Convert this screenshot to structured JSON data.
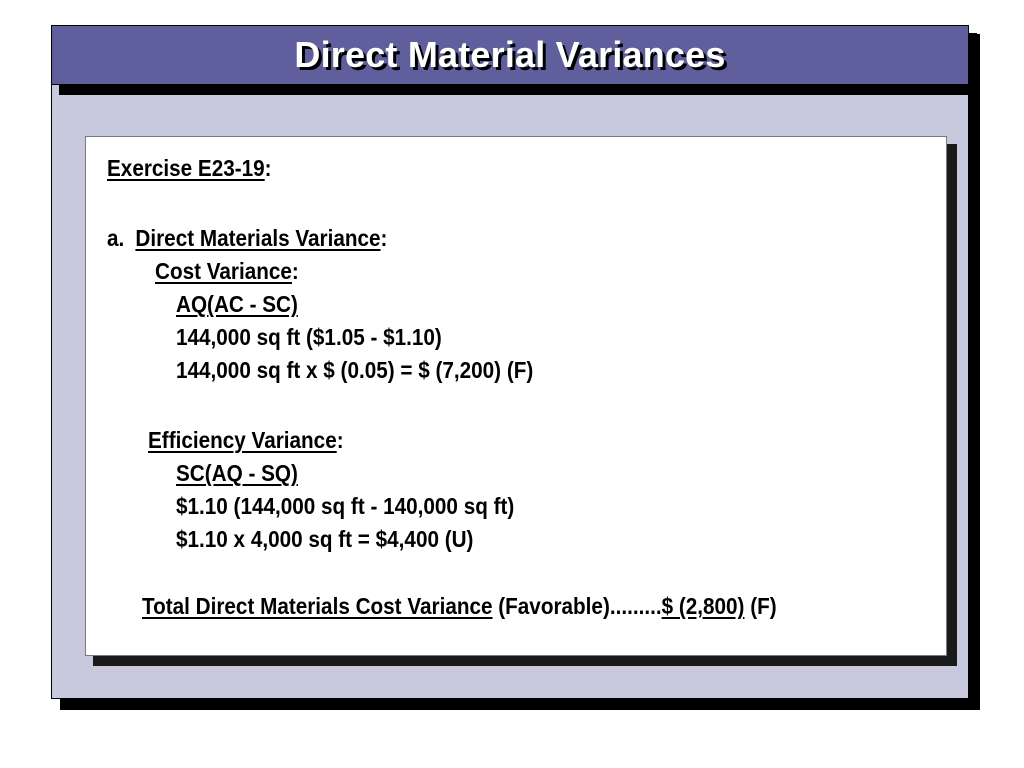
{
  "slide": {
    "title": "Direct Material Variances",
    "exercise_heading": "Exercise E23-19",
    "colon": ":",
    "part_a": {
      "marker": "a.",
      "heading": "Direct Materials Variance",
      "cost_variance": {
        "heading": "Cost Variance",
        "formula": "AQ(AC - SC)",
        "line1": "144,000 sq ft ($1.05 - $1.10)",
        "line2": "144,000 sq ft  x  $ (0.05) = $ (7,200) (F)"
      },
      "efficiency_variance": {
        "heading": "Efficiency Variance",
        "formula": "SC(AQ - SQ)",
        "line1": "$1.10 (144,000 sq ft  - 140,000 sq ft)",
        "line2": "$1.10 x 4,000 sq ft  = $4,400 (U)"
      },
      "total": {
        "label": "Total Direct Materials Cost Variance",
        "qualifier": " (Favorable).........",
        "amount": "$ (2,800)",
        "suffix": " (F)"
      }
    }
  },
  "colors": {
    "title_bar": "#5e5f9c",
    "frame_background": "#c9c9dd",
    "card_background": "#ffffff"
  }
}
